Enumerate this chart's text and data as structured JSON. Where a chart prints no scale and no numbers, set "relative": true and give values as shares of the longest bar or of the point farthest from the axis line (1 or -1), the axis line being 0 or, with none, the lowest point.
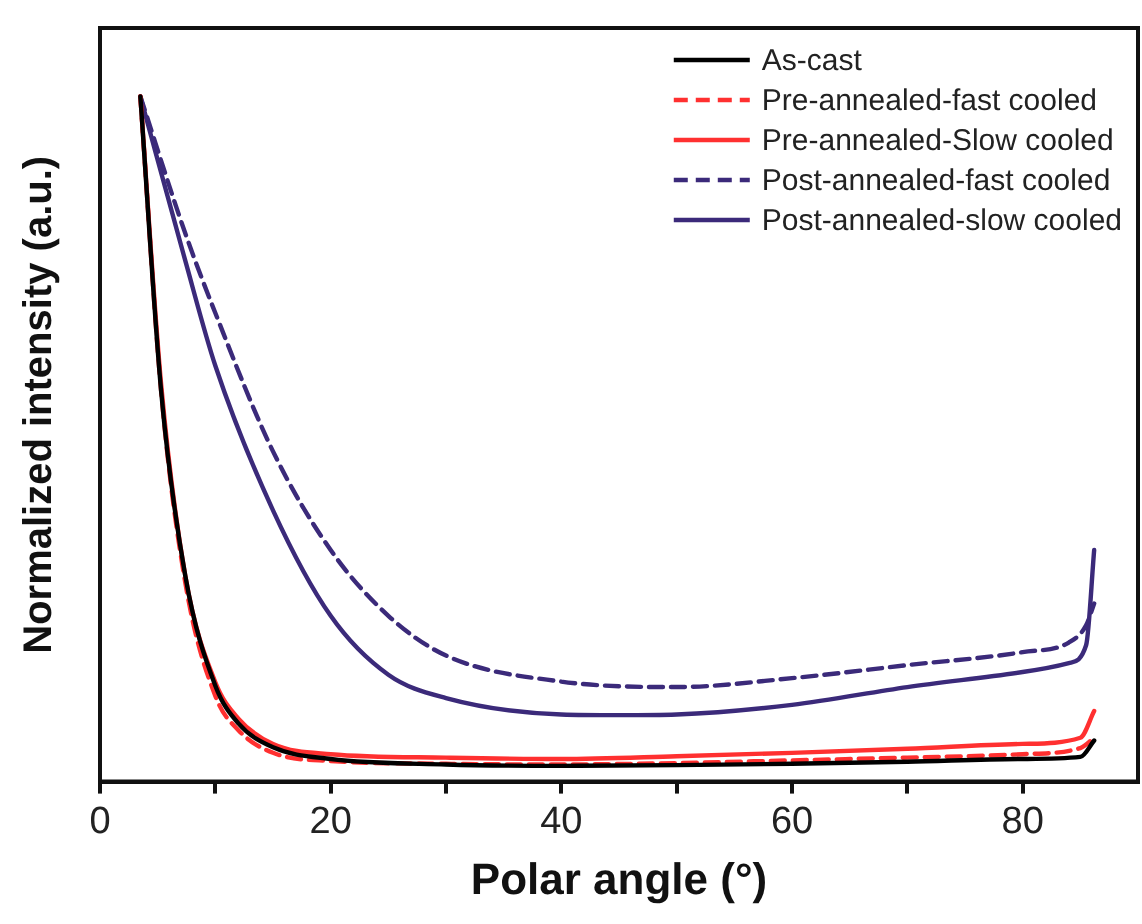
{
  "chart_data": {
    "type": "line",
    "relative": true,
    "xlabel": "Polar angle (°)",
    "ylabel": "Normalized intensity (a.u.)",
    "xlim": [
      0,
      90
    ],
    "xticks": [
      0,
      {
        "value": 10,
        "label": null
      },
      20,
      {
        "value": 30,
        "label": null
      },
      40,
      {
        "value": 50,
        "label": null
      },
      60,
      {
        "value": 70,
        "label": null
      },
      80
    ],
    "legend": "top right",
    "grid": false,
    "marker": "none",
    "series": [
      {
        "name": "As-cast",
        "color": "#000000",
        "line_style": "solid",
        "x": [
          3.5,
          5.3,
          7.4,
          10,
          12,
          15,
          20,
          30,
          40,
          50,
          60,
          70,
          80,
          85,
          86.2
        ],
        "values": [
          1,
          0.57,
          0.3,
          0.14,
          0.085,
          0.05,
          0.033,
          0.025,
          0.023,
          0.024,
          0.026,
          0.029,
          0.033,
          0.036,
          0.06
        ]
      },
      {
        "name": "Pre-annealed-fast cooled",
        "color": "#ff3030",
        "line_style": "dashed",
        "x": [
          3.5,
          5.3,
          7.4,
          10,
          12,
          15,
          20,
          30,
          40,
          50,
          60,
          70,
          80,
          85,
          86.2
        ],
        "values": [
          1,
          0.57,
          0.29,
          0.125,
          0.075,
          0.042,
          0.03,
          0.026,
          0.025,
          0.027,
          0.031,
          0.035,
          0.04,
          0.049,
          0.064
        ]
      },
      {
        "name": "Pre-annealed-Slow cooled",
        "color": "#ff3030",
        "line_style": "solid",
        "x": [
          3.5,
          5.3,
          7.4,
          10,
          12,
          15,
          20,
          30,
          40,
          50,
          60,
          70,
          80,
          85,
          86.2
        ],
        "values": [
          1,
          0.58,
          0.3,
          0.145,
          0.092,
          0.055,
          0.04,
          0.035,
          0.033,
          0.037,
          0.042,
          0.048,
          0.055,
          0.064,
          0.103
        ]
      },
      {
        "name": "Post-annealed-fast cooled",
        "color": "#3b2a7a",
        "line_style": "dashed",
        "x": [
          3.5,
          7.4,
          10,
          15,
          20,
          25,
          30,
          40,
          50,
          60,
          70,
          80,
          84,
          85.5,
          86.2
        ],
        "values": [
          1,
          0.8,
          0.684,
          0.482,
          0.338,
          0.242,
          0.184,
          0.146,
          0.138,
          0.151,
          0.17,
          0.189,
          0.203,
          0.228,
          0.26
        ]
      },
      {
        "name": "Post-annealed-slow cooled",
        "color": "#3b2a7a",
        "line_style": "solid",
        "x": [
          3.5,
          7.4,
          10,
          15,
          20,
          25,
          30,
          40,
          45,
          50,
          60,
          70,
          80,
          84,
          85.5,
          86.2
        ],
        "values": [
          1,
          0.76,
          0.607,
          0.396,
          0.242,
          0.156,
          0.122,
          0.098,
          0.097,
          0.098,
          0.112,
          0.138,
          0.16,
          0.173,
          0.199,
          0.338
        ]
      }
    ]
  }
}
